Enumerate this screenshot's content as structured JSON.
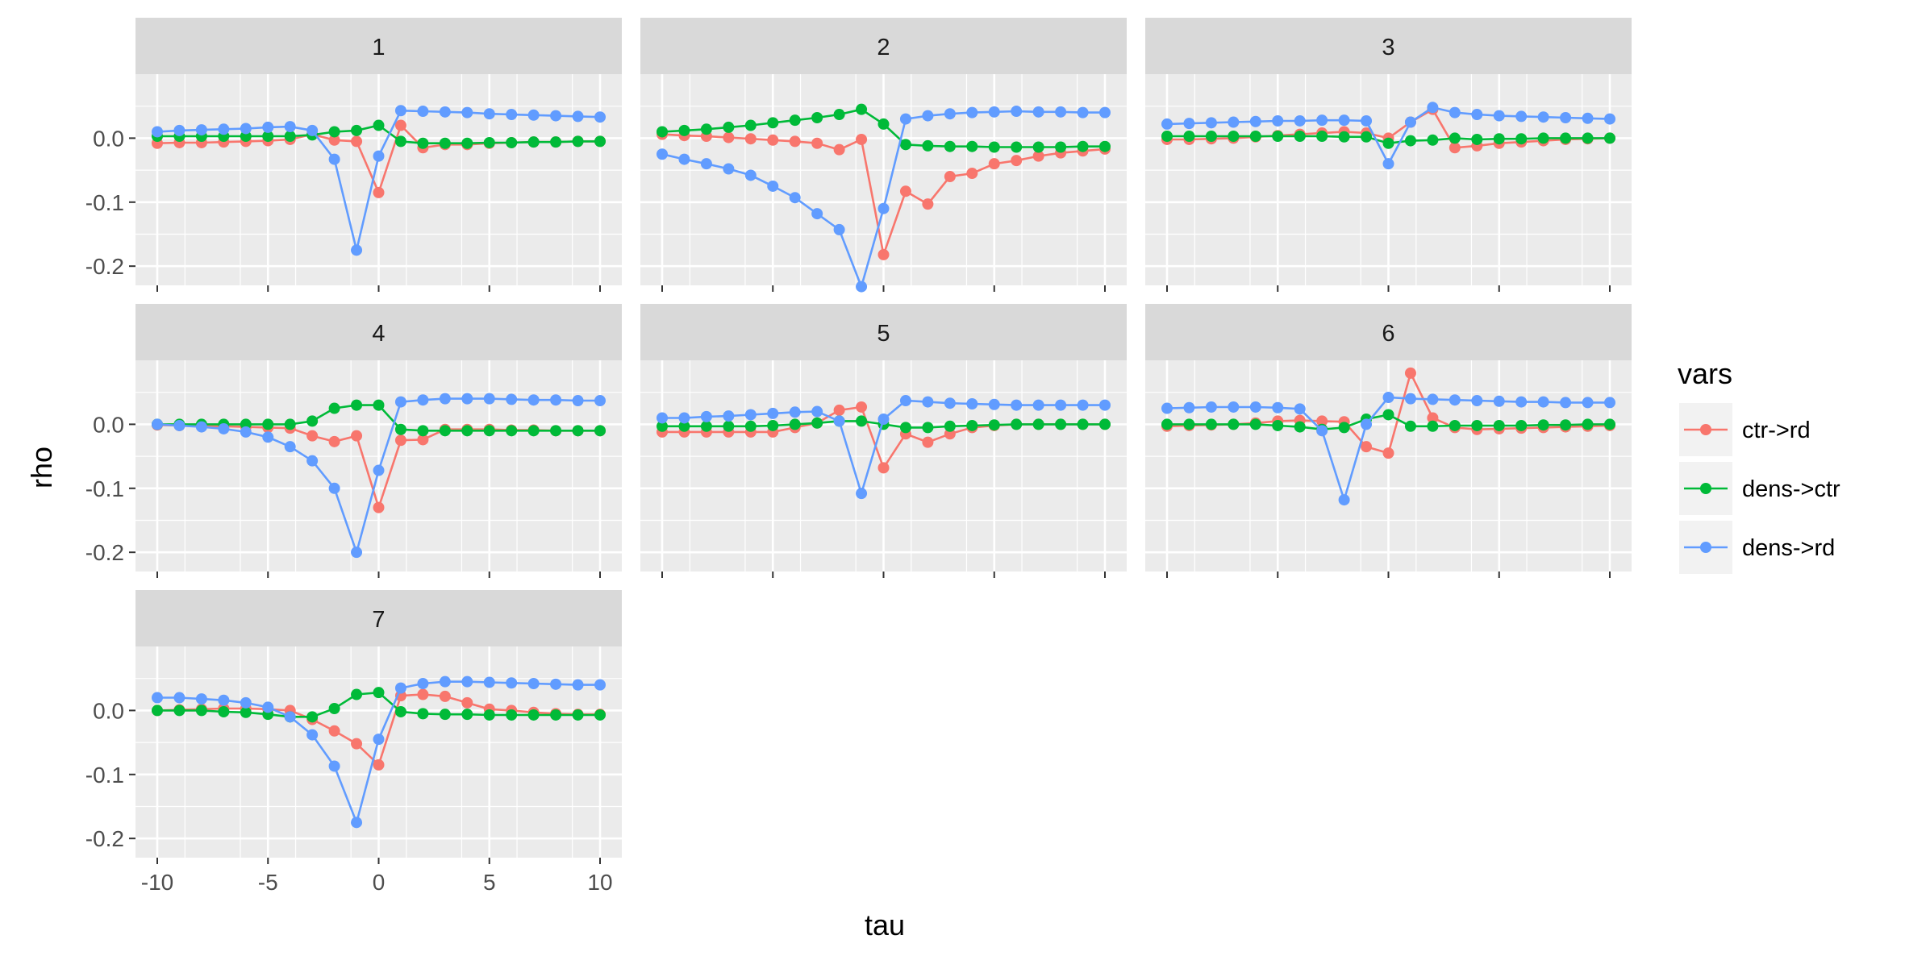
{
  "chart_data": {
    "type": "line",
    "facet_variable_values": [
      "1",
      "2",
      "3",
      "4",
      "5",
      "6",
      "7"
    ],
    "xlabel": "tau",
    "ylabel": "rho",
    "xlim": [
      -10,
      10
    ],
    "ylim": [
      -0.23,
      0.1
    ],
    "x_ticks": [
      "-10",
      "-5",
      "0",
      "5",
      "10"
    ],
    "y_ticks": [
      "0.0",
      "-0.1",
      "-0.2"
    ],
    "grid": true,
    "legend": {
      "title": "vars",
      "position": "right",
      "entries": [
        "ctr->rd",
        "dens->ctr",
        "dens->rd"
      ]
    },
    "colors": {
      "ctr->rd": "#F8766D",
      "dens->ctr": "#00BA38",
      "dens->rd": "#619CFF",
      "panel_bg": "#EBEBEB",
      "strip_bg": "#D9D9D9"
    },
    "x": [
      -10,
      -9,
      -8,
      -7,
      -6,
      -5,
      -4,
      -3,
      -2,
      -1,
      0,
      1,
      2,
      3,
      4,
      5,
      6,
      7,
      8,
      9,
      10
    ],
    "panels": [
      {
        "label": "1",
        "series": [
          {
            "name": "ctr->rd",
            "values": [
              -0.008,
              -0.007,
              -0.007,
              -0.006,
              -0.005,
              -0.004,
              -0.002,
              0.006,
              -0.003,
              -0.005,
              -0.085,
              0.02,
              -0.015,
              -0.01,
              -0.01,
              -0.008,
              -0.007,
              -0.006,
              -0.006,
              -0.005,
              -0.005
            ]
          },
          {
            "name": "dens->ctr",
            "values": [
              0.003,
              0.003,
              0.003,
              0.003,
              0.003,
              0.003,
              0.003,
              0.005,
              0.01,
              0.012,
              0.02,
              -0.005,
              -0.008,
              -0.008,
              -0.008,
              -0.007,
              -0.007,
              -0.006,
              -0.006,
              -0.005,
              -0.005
            ]
          },
          {
            "name": "dens->rd",
            "values": [
              0.01,
              0.012,
              0.013,
              0.014,
              0.015,
              0.017,
              0.018,
              0.012,
              -0.033,
              -0.175,
              -0.028,
              0.043,
              0.042,
              0.041,
              0.04,
              0.038,
              0.037,
              0.036,
              0.035,
              0.034,
              0.033
            ]
          }
        ]
      },
      {
        "label": "2",
        "series": [
          {
            "name": "ctr->rd",
            "values": [
              0.006,
              0.004,
              0.003,
              0.001,
              -0.001,
              -0.003,
              -0.005,
              -0.008,
              -0.018,
              -0.002,
              -0.182,
              -0.083,
              -0.103,
              -0.06,
              -0.055,
              -0.04,
              -0.035,
              -0.028,
              -0.023,
              -0.02,
              -0.017
            ]
          },
          {
            "name": "dens->ctr",
            "values": [
              0.01,
              0.012,
              0.014,
              0.017,
              0.02,
              0.024,
              0.028,
              0.032,
              0.037,
              0.045,
              0.022,
              -0.01,
              -0.012,
              -0.013,
              -0.013,
              -0.014,
              -0.014,
              -0.014,
              -0.014,
              -0.013,
              -0.013
            ]
          },
          {
            "name": "dens->rd",
            "values": [
              -0.025,
              -0.033,
              -0.04,
              -0.048,
              -0.058,
              -0.075,
              -0.093,
              -0.118,
              -0.143,
              -0.232,
              -0.11,
              0.03,
              0.035,
              0.038,
              0.04,
              0.041,
              0.042,
              0.041,
              0.041,
              0.04,
              0.04
            ]
          }
        ]
      },
      {
        "label": "3",
        "series": [
          {
            "name": "ctr->rd",
            "values": [
              -0.002,
              -0.002,
              -0.001,
              0.0,
              0.002,
              0.004,
              0.006,
              0.008,
              0.01,
              0.008,
              0.0,
              0.025,
              0.045,
              -0.015,
              -0.012,
              -0.008,
              -0.006,
              -0.004,
              -0.002,
              -0.001,
              0.0
            ]
          },
          {
            "name": "dens->ctr",
            "values": [
              0.003,
              0.003,
              0.003,
              0.003,
              0.003,
              0.003,
              0.003,
              0.003,
              0.002,
              0.002,
              -0.008,
              -0.004,
              -0.003,
              0.0,
              -0.002,
              -0.001,
              -0.001,
              0.0,
              0.0,
              0.0,
              0.0
            ]
          },
          {
            "name": "dens->rd",
            "values": [
              0.022,
              0.023,
              0.024,
              0.025,
              0.026,
              0.027,
              0.027,
              0.028,
              0.028,
              0.027,
              -0.04,
              0.025,
              0.048,
              0.04,
              0.037,
              0.035,
              0.034,
              0.033,
              0.032,
              0.031,
              0.03
            ]
          }
        ]
      },
      {
        "label": "4",
        "series": [
          {
            "name": "ctr->rd",
            "values": [
              -0.001,
              -0.002,
              -0.003,
              -0.003,
              -0.004,
              -0.005,
              -0.006,
              -0.018,
              -0.027,
              -0.018,
              -0.13,
              -0.025,
              -0.024,
              -0.008,
              -0.008,
              -0.008,
              -0.009,
              -0.009,
              -0.01,
              -0.01,
              -0.01
            ]
          },
          {
            "name": "dens->ctr",
            "values": [
              0.0,
              0.0,
              0.0,
              0.0,
              0.0,
              0.0,
              0.0,
              0.005,
              0.025,
              0.03,
              0.03,
              -0.008,
              -0.01,
              -0.01,
              -0.01,
              -0.01,
              -0.01,
              -0.01,
              -0.01,
              -0.01,
              -0.01
            ]
          },
          {
            "name": "dens->rd",
            "values": [
              0.0,
              -0.002,
              -0.004,
              -0.007,
              -0.012,
              -0.02,
              -0.035,
              -0.057,
              -0.1,
              -0.2,
              -0.072,
              0.035,
              0.038,
              0.04,
              0.04,
              0.04,
              0.039,
              0.038,
              0.038,
              0.037,
              0.037
            ]
          }
        ]
      },
      {
        "label": "5",
        "series": [
          {
            "name": "ctr->rd",
            "values": [
              -0.012,
              -0.012,
              -0.012,
              -0.012,
              -0.012,
              -0.012,
              -0.005,
              0.002,
              0.022,
              0.027,
              -0.068,
              -0.015,
              -0.028,
              -0.015,
              -0.005,
              -0.002,
              0.0,
              0.0,
              0.0,
              0.0,
              0.0
            ]
          },
          {
            "name": "dens->ctr",
            "values": [
              -0.003,
              -0.003,
              -0.003,
              -0.003,
              -0.003,
              -0.002,
              0.0,
              0.002,
              0.005,
              0.005,
              0.0,
              -0.005,
              -0.005,
              -0.003,
              -0.002,
              -0.001,
              0.0,
              0.0,
              0.0,
              0.0,
              0.0
            ]
          },
          {
            "name": "dens->rd",
            "values": [
              0.01,
              0.01,
              0.012,
              0.013,
              0.015,
              0.017,
              0.019,
              0.02,
              0.005,
              -0.108,
              0.008,
              0.037,
              0.035,
              0.033,
              0.032,
              0.031,
              0.03,
              0.03,
              0.03,
              0.03,
              0.03
            ]
          }
        ]
      },
      {
        "label": "6",
        "series": [
          {
            "name": "ctr->rd",
            "values": [
              -0.003,
              -0.002,
              -0.001,
              0.0,
              0.002,
              0.005,
              0.006,
              0.005,
              0.004,
              -0.035,
              -0.045,
              0.08,
              0.01,
              -0.005,
              -0.008,
              -0.007,
              -0.006,
              -0.005,
              -0.004,
              -0.003,
              -0.002
            ]
          },
          {
            "name": "dens->ctr",
            "values": [
              0.0,
              0.0,
              0.0,
              0.0,
              0.0,
              -0.002,
              -0.004,
              -0.008,
              -0.005,
              0.008,
              0.015,
              -0.003,
              -0.003,
              -0.002,
              -0.002,
              -0.002,
              -0.002,
              -0.001,
              -0.001,
              0.0,
              0.0
            ]
          },
          {
            "name": "dens->rd",
            "values": [
              0.025,
              0.026,
              0.027,
              0.027,
              0.027,
              0.026,
              0.024,
              -0.01,
              -0.118,
              0.0,
              0.042,
              0.04,
              0.039,
              0.038,
              0.037,
              0.036,
              0.035,
              0.035,
              0.034,
              0.034,
              0.034
            ]
          }
        ]
      },
      {
        "label": "7",
        "series": [
          {
            "name": "ctr->rd",
            "values": [
              0.0,
              0.001,
              0.002,
              0.003,
              0.003,
              0.002,
              0.0,
              -0.014,
              -0.032,
              -0.052,
              -0.085,
              0.023,
              0.025,
              0.022,
              0.012,
              0.002,
              0.0,
              -0.003,
              -0.005,
              -0.006,
              -0.006
            ]
          },
          {
            "name": "dens->ctr",
            "values": [
              0.0,
              0.0,
              0.0,
              -0.002,
              -0.003,
              -0.006,
              -0.01,
              -0.01,
              0.003,
              0.025,
              0.028,
              -0.002,
              -0.005,
              -0.006,
              -0.006,
              -0.007,
              -0.007,
              -0.007,
              -0.007,
              -0.007,
              -0.007
            ]
          },
          {
            "name": "dens->rd",
            "values": [
              0.02,
              0.02,
              0.018,
              0.016,
              0.012,
              0.005,
              -0.01,
              -0.038,
              -0.087,
              -0.175,
              -0.045,
              0.035,
              0.042,
              0.045,
              0.045,
              0.044,
              0.043,
              0.042,
              0.041,
              0.04,
              0.04
            ]
          }
        ]
      }
    ]
  }
}
